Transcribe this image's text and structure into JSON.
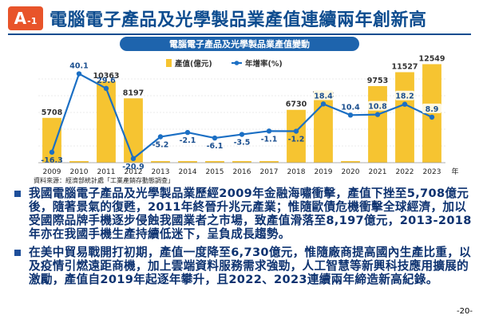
{
  "header": {
    "badge_letter": "A",
    "badge_number": "-1",
    "title": "電腦電子產品及光學製品業產值連續兩年創新高"
  },
  "chart_data": {
    "type": "bar",
    "title": "電腦電子產品及光學製品業產值變動",
    "categories": [
      "2009",
      "2010",
      "2011",
      "2012",
      "2013",
      "2014",
      "2015",
      "2016",
      "2017",
      "2018",
      "2019",
      "2020",
      "2021",
      "2022",
      "2023"
    ],
    "x_unit": "年",
    "series": [
      {
        "name": "產值(億元)",
        "type": "bar",
        "color": "#f6c431",
        "values": [
          5708,
          null,
          10363,
          8197,
          null,
          null,
          null,
          null,
          null,
          6730,
          7972,
          null,
          9753,
          11527,
          12549
        ],
        "labels": [
          "5708",
          "",
          "10363",
          "8197",
          "",
          "",
          "",
          "",
          "",
          "6730",
          "7972",
          "",
          "9753",
          "11527",
          "12549"
        ]
      },
      {
        "name": "年增率(%)",
        "type": "line",
        "color": "#1b6fc4",
        "values": [
          -16.3,
          40.1,
          29.6,
          -20.9,
          -5.2,
          -2.1,
          -6.1,
          -3.5,
          -1.1,
          -1.2,
          18.4,
          10.4,
          10.8,
          18.2,
          8.9
        ],
        "labels": [
          "-16.3",
          "40.1",
          "29.6",
          "-20.9",
          "-5.2",
          "-2.1",
          "-6.1",
          "-3.5",
          "-1.1",
          "-1.2",
          "18.4",
          "10.4",
          "10.8",
          "18.2",
          "8.9"
        ]
      }
    ],
    "legend": "top-center",
    "grid": true
  },
  "source": "資料來源：經濟部統計處「工業產銷存動態調查」",
  "bullets": [
    "我國電腦電子產品及光學製品業歷經2009年金融海嘯衝擊，產值下挫至5,708億元後，隨著景氣的復甦，2011年終晉升兆元產業；惟隨歐債危機衝擊全球經濟，加以受國際品牌手機逐步侵蝕我國業者之市場，致產值滑落至8,197億元，2013-2018年亦在我國手機生產持續低迷下，呈負成長趨勢。",
    "在美中貿易戰開打初期，產值一度降至6,730億元，惟隨廠商提高國內生產比重，以及疫情引燃遠距商機，加上雲端資料服務需求強勁，人工智慧等新興科技應用擴展的激勵，產值自2019年起逐年攀升，且2022、2023連續兩年締造新高紀錄。"
  ],
  "page_number": "-20-"
}
